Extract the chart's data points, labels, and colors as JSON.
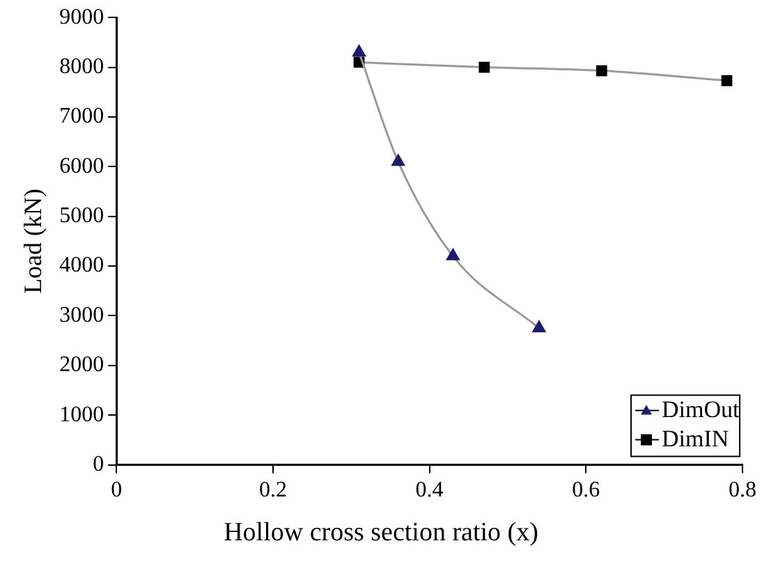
{
  "chart_data": {
    "type": "line",
    "xlabel": "Hollow cross section ratio (x)",
    "ylabel": "Load (kN)",
    "xlim": [
      0,
      0.8
    ],
    "xticks": [
      0,
      0.2,
      0.4,
      0.6,
      0.8
    ],
    "ylim": [
      0,
      9000
    ],
    "yticks": [
      0,
      1000,
      2000,
      3000,
      4000,
      5000,
      6000,
      7000,
      8000,
      9000
    ],
    "grid": false,
    "legend": "bottom right",
    "series": [
      {
        "name": "DimOut",
        "color": "#1c1c6b",
        "marker": "triangle",
        "x": [
          0.31,
          0.36,
          0.43,
          0.54
        ],
        "values": [
          8300,
          6100,
          4200,
          2750
        ]
      },
      {
        "name": "DimIN",
        "color": "#000000",
        "marker": "square",
        "x": [
          0.31,
          0.47,
          0.62,
          0.78
        ],
        "values": [
          8100,
          8000,
          7930,
          7730
        ]
      }
    ]
  }
}
